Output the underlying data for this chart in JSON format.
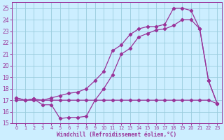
{
  "xlabel": "Windchill (Refroidissement éolien,°C)",
  "xlim": [
    -0.5,
    23.5
  ],
  "ylim": [
    15,
    25.5
  ],
  "xticks": [
    0,
    1,
    2,
    3,
    4,
    5,
    6,
    7,
    8,
    9,
    10,
    11,
    12,
    13,
    14,
    15,
    16,
    17,
    18,
    19,
    20,
    21,
    22,
    23
  ],
  "yticks": [
    15,
    16,
    17,
    18,
    19,
    20,
    21,
    22,
    23,
    24,
    25
  ],
  "background_color": "#cceeff",
  "grid_color": "#99ccdd",
  "line_color": "#993399",
  "curve1_x": [
    0,
    1,
    2,
    3,
    4,
    5,
    6,
    7,
    8,
    9,
    10,
    11,
    12,
    13,
    14,
    15,
    16,
    17,
    18,
    19,
    20,
    21,
    22,
    23
  ],
  "curve1_y": [
    17.0,
    17.0,
    17.0,
    17.0,
    17.0,
    17.0,
    17.0,
    17.0,
    17.0,
    17.0,
    17.0,
    17.0,
    17.0,
    17.0,
    17.0,
    17.0,
    17.0,
    17.0,
    17.0,
    17.0,
    17.0,
    17.0,
    17.0,
    16.7
  ],
  "curve2_x": [
    0,
    1,
    2,
    3,
    4,
    5,
    6,
    7,
    8,
    9,
    10,
    11,
    12,
    13,
    14,
    15,
    16,
    17,
    18,
    19,
    20,
    21,
    22,
    23
  ],
  "curve2_y": [
    17.2,
    17.0,
    17.1,
    16.6,
    16.6,
    15.4,
    15.5,
    15.5,
    15.6,
    17.0,
    18.0,
    19.2,
    21.0,
    21.5,
    22.5,
    22.8,
    23.1,
    23.2,
    23.5,
    24.0,
    24.0,
    23.2,
    18.7,
    16.7
  ],
  "curve3_x": [
    0,
    1,
    2,
    3,
    4,
    5,
    6,
    7,
    8,
    9,
    10,
    11,
    12,
    13,
    14,
    15,
    16,
    17,
    18,
    19,
    20,
    21,
    22,
    23
  ],
  "curve3_y": [
    17.2,
    17.0,
    17.1,
    17.0,
    17.2,
    17.4,
    17.6,
    17.7,
    18.0,
    18.7,
    19.5,
    21.3,
    21.8,
    22.7,
    23.2,
    23.4,
    23.4,
    23.6,
    25.0,
    25.0,
    24.8,
    23.2,
    18.7,
    16.7
  ]
}
